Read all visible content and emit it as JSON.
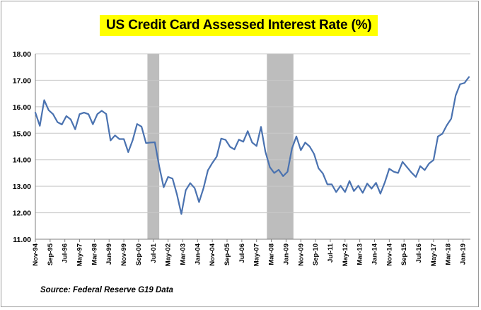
{
  "chart_data": {
    "type": "line",
    "title": "US Credit Card Assessed Interest Rate (%)",
    "source": "Source: Federal Reserve G19 Data",
    "xlabel": "",
    "ylabel": "",
    "ylim": [
      11.0,
      18.0
    ],
    "yticks": [
      "11.00",
      "12.00",
      "13.00",
      "14.00",
      "15.00",
      "16.00",
      "17.00",
      "18.00"
    ],
    "xlim": [
      "Nov-94",
      "Jun-19"
    ],
    "xtick_labels": [
      "Nov-94",
      "Sep-95",
      "Jul-96",
      "May-97",
      "Mar-98",
      "Jan-99",
      "Nov-99",
      "Sep-00",
      "Jul-01",
      "May-02",
      "Mar-03",
      "Jan-04",
      "Nov-04",
      "Sep-05",
      "Jul-06",
      "May-07",
      "Mar-08",
      "Jan-09",
      "Nov-09",
      "Sep-10",
      "Jul-11",
      "May-12",
      "Mar-13",
      "Jan-14",
      "Nov-14",
      "Sep-15",
      "Jul-16",
      "May-17",
      "Mar-18",
      "Jan-19"
    ],
    "grid": "horizontal",
    "legend": "none",
    "line_color": "#4a72b0",
    "recession_color": "#bdbdbd",
    "shaded_periods": [
      {
        "start": "Mar-01",
        "end": "Nov-01"
      },
      {
        "start": "Dec-07",
        "end": "Jun-09"
      }
    ],
    "series": [
      {
        "x": [
          "Nov-94",
          "Feb-95",
          "May-95",
          "Aug-95",
          "Nov-95",
          "Feb-96",
          "May-96",
          "Aug-96",
          "Nov-96",
          "Feb-97",
          "May-97",
          "Aug-97",
          "Nov-97",
          "Feb-98",
          "May-98",
          "Aug-98",
          "Nov-98",
          "Feb-99",
          "May-99",
          "Aug-99",
          "Nov-99",
          "Feb-00",
          "May-00",
          "Aug-00",
          "Nov-00",
          "Feb-01",
          "May-01",
          "Aug-01",
          "Nov-01",
          "Feb-02",
          "May-02",
          "Aug-02",
          "Nov-02",
          "Feb-03",
          "May-03",
          "Aug-03",
          "Nov-03",
          "Feb-04",
          "May-04",
          "Aug-04",
          "Nov-04",
          "Feb-05",
          "May-05",
          "Aug-05",
          "Nov-05",
          "Feb-06",
          "May-06",
          "Aug-06",
          "Nov-06",
          "Feb-07",
          "May-07",
          "Aug-07",
          "Nov-07",
          "Feb-08",
          "May-08",
          "Aug-08",
          "Nov-08",
          "Feb-09",
          "May-09",
          "Aug-09",
          "Nov-09",
          "Feb-10",
          "May-10",
          "Aug-10",
          "Nov-10",
          "Feb-11",
          "May-11",
          "Aug-11",
          "Nov-11",
          "Feb-12",
          "May-12",
          "Aug-12",
          "Nov-12",
          "Feb-13",
          "May-13",
          "Aug-13",
          "Nov-13",
          "Feb-14",
          "May-14",
          "Aug-14",
          "Nov-14",
          "Feb-15",
          "May-15",
          "Aug-15",
          "Nov-15",
          "Feb-16",
          "May-16",
          "Aug-16",
          "Nov-16",
          "Feb-17",
          "May-17",
          "Aug-17",
          "Nov-17",
          "Feb-18",
          "May-18",
          "Aug-18",
          "Nov-18",
          "Feb-19",
          "May-19"
        ],
        "values": [
          15.78,
          15.28,
          16.25,
          15.87,
          15.72,
          15.42,
          15.33,
          15.65,
          15.52,
          15.15,
          15.72,
          15.78,
          15.72,
          15.34,
          15.72,
          15.85,
          15.73,
          14.73,
          14.92,
          14.78,
          14.78,
          14.29,
          14.74,
          15.35,
          15.25,
          14.63,
          14.65,
          14.66,
          13.75,
          12.96,
          13.35,
          13.29,
          12.7,
          11.95,
          12.85,
          13.12,
          12.93,
          12.4,
          12.93,
          13.6,
          13.88,
          14.12,
          14.8,
          14.75,
          14.49,
          14.39,
          14.76,
          14.68,
          15.08,
          14.65,
          14.52,
          15.24,
          14.3,
          13.72,
          13.5,
          13.62,
          13.38,
          13.55,
          14.42,
          14.88,
          14.36,
          14.65,
          14.5,
          14.22,
          13.68,
          13.48,
          13.07,
          13.07,
          12.78,
          13.02,
          12.78,
          13.2,
          12.82,
          13.02,
          12.75,
          13.1,
          12.91,
          13.13,
          12.72,
          13.15,
          13.66,
          13.55,
          13.5,
          13.92,
          13.72,
          13.52,
          13.35,
          13.76,
          13.61,
          13.86,
          13.99,
          14.88,
          14.98,
          15.3,
          15.55,
          16.43,
          16.85,
          16.9,
          17.12
        ]
      }
    ]
  }
}
